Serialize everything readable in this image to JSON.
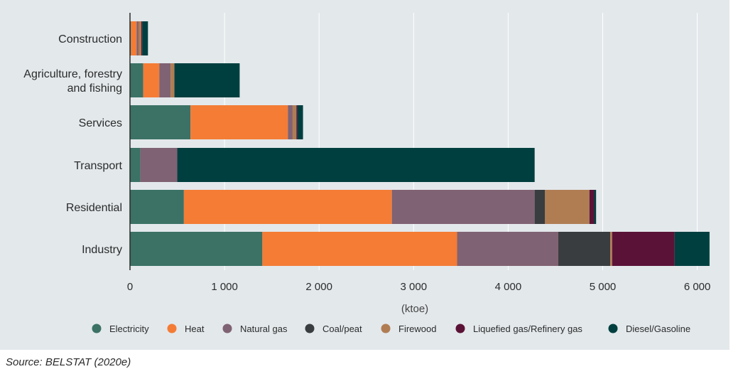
{
  "chart_data": {
    "type": "bar",
    "orientation": "horizontal",
    "stacked": true,
    "categories": [
      "Construction",
      "Agriculture, forestry and fishing",
      "Services",
      "Transport",
      "Residential",
      "Industry"
    ],
    "category_lines": [
      [
        "Construction"
      ],
      [
        "Agriculture, forestry",
        "and fishing"
      ],
      [
        "Services"
      ],
      [
        "Transport"
      ],
      [
        "Residential"
      ],
      [
        "Industry"
      ]
    ],
    "series": [
      {
        "name": "Electricity",
        "color": "#3b7265",
        "values": [
          10,
          140,
          640,
          110,
          570,
          1400
        ]
      },
      {
        "name": "Heat",
        "color": "#f47c35",
        "values": [
          60,
          170,
          1030,
          0,
          2200,
          2060
        ]
      },
      {
        "name": "Natural gas",
        "color": "#7f6273",
        "values": [
          20,
          120,
          50,
          390,
          1510,
          1070
        ]
      },
      {
        "name": "Coal/peat",
        "color": "#3a3d3f",
        "values": [
          0,
          0,
          0,
          0,
          110,
          550
        ]
      },
      {
        "name": "Firewood",
        "color": "#b07d53",
        "values": [
          30,
          40,
          40,
          0,
          470,
          20
        ]
      },
      {
        "name": "Liquefied gas/Refinery gas",
        "color": "#5b1237",
        "values": [
          10,
          0,
          10,
          0,
          50,
          660
        ]
      },
      {
        "name": "Diesel/Gasoline",
        "color": "#003f3f",
        "values": [
          60,
          690,
          60,
          3780,
          20,
          370
        ]
      }
    ],
    "xlim": [
      0,
      6100
    ],
    "xticks": [
      0,
      1000,
      2000,
      3000,
      4000,
      5000,
      6000
    ],
    "xtick_labels": [
      "0",
      "1 000",
      "2 000",
      "3 000",
      "4 000",
      "5 000",
      "6 000"
    ],
    "xlabel": "(ktoe)",
    "ylabel": "",
    "grid": "vertical",
    "legend": "bottom"
  },
  "source": "Source: BELSTAT (2020e)"
}
